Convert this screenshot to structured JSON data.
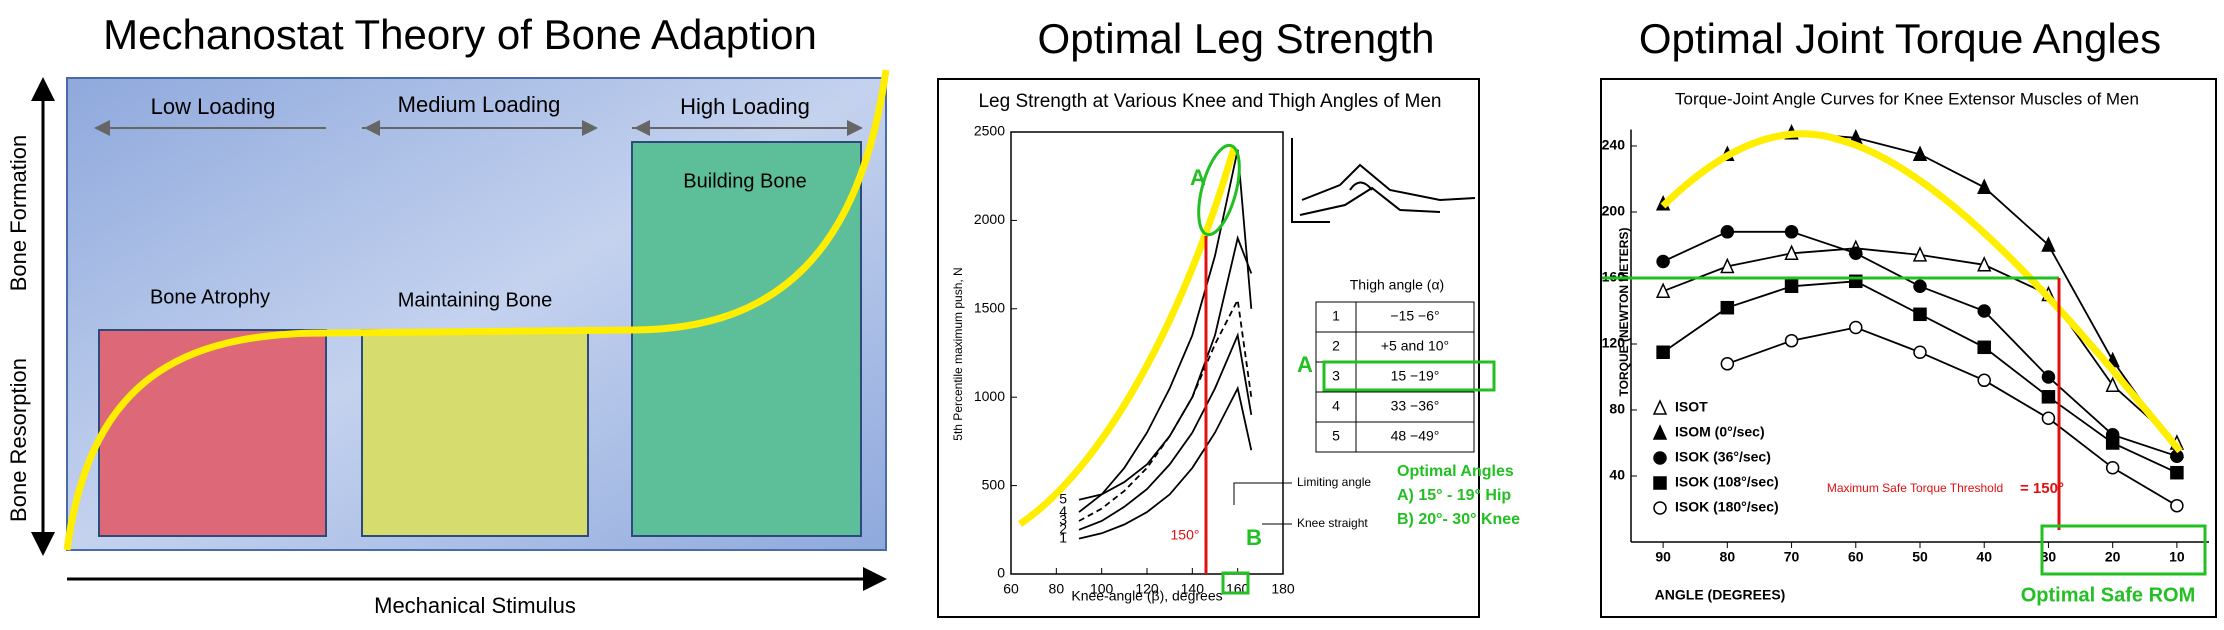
{
  "diagram": {
    "title": "Mechanostat Theory of Bone Adaption",
    "y_labels": [
      "Bone Formation",
      "Bone Resorption"
    ],
    "x_label": "Mechanical Stimulus",
    "zones": [
      {
        "header": "Low Loading",
        "box": "Bone Atrophy"
      },
      {
        "header": "Medium Loading",
        "box": "Maintaining Bone"
      },
      {
        "header": "High Loading",
        "box": "Building Bone"
      }
    ]
  },
  "chart_data": [
    {
      "type": "line",
      "title": "Optimal Leg Strength",
      "subtitle": "Leg Strength at Various Knee and Thigh Angles of Men",
      "x_label": "Knee-angle (β), degrees",
      "y_label": "5th Percentile maximum push, N",
      "x": [
        90,
        100,
        110,
        120,
        130,
        140,
        150,
        160,
        166
      ],
      "xlim": [
        60,
        180
      ],
      "xticks": [
        60,
        80,
        100,
        120,
        140,
        160,
        180
      ],
      "ylim": [
        0,
        2500
      ],
      "yticks": [
        0,
        500,
        1000,
        1500,
        2000,
        2500
      ],
      "series": [
        {
          "name": "1",
          "color": "#000000",
          "values": [
            200,
            230,
            280,
            350,
            450,
            600,
            800,
            1050,
            700
          ]
        },
        {
          "name": "2",
          "color": "#000000",
          "values": [
            250,
            300,
            380,
            480,
            620,
            800,
            1050,
            1350,
            900
          ]
        },
        {
          "name": "3",
          "color": "#000000",
          "dash": true,
          "values": [
            300,
            370,
            470,
            600,
            780,
            1000,
            1300,
            1550,
            1000
          ]
        },
        {
          "name": "4",
          "color": "#000000",
          "values": [
            350,
            450,
            600,
            800,
            1050,
            1350,
            1800,
            2400,
            1500
          ]
        },
        {
          "name": "5",
          "color": "#000000",
          "values": [
            420,
            450,
            520,
            620,
            780,
            1000,
            1350,
            1900,
            1700
          ]
        }
      ],
      "table": {
        "header": "Thigh angle (α)",
        "rows": [
          [
            "1",
            "−15 −6°"
          ],
          [
            "2",
            "+5 and 10°"
          ],
          [
            "3",
            "15 −19°"
          ],
          [
            "4",
            "33 −36°"
          ],
          [
            "5",
            "48 −49°"
          ]
        ]
      },
      "annotations": [
        "A",
        "A",
        "150°",
        "B",
        "Optimal Angles",
        "A) 15° - 19° Hip",
        "B) 20°- 30° Knee",
        "Limiting angle",
        "Knee straight"
      ]
    },
    {
      "type": "line",
      "title": "Optimal Joint Torque Angles",
      "subtitle": "Torque-Joint Angle Curves for Knee Extensor Muscles of Men",
      "x_label": "ANGLE (DEGREES)",
      "y_label": "TORQUE (NEWTON METERS)",
      "x": [
        90,
        80,
        70,
        60,
        50,
        40,
        30,
        20,
        10
      ],
      "xlim": [
        95,
        5
      ],
      "xticks": [
        90,
        80,
        70,
        60,
        50,
        40,
        30,
        20,
        10
      ],
      "ylim": [
        0,
        250
      ],
      "yticks": [
        40,
        80,
        120,
        160,
        200,
        240
      ],
      "series": [
        {
          "name": "ISOT",
          "color": "#000000",
          "marker": "open-triangle",
          "values": [
            152,
            167,
            175,
            178,
            174,
            168,
            150,
            95,
            60
          ]
        },
        {
          "name": "ISOM (0°/sec)",
          "color": "#000000",
          "marker": "triangle",
          "values": [
            205,
            235,
            248,
            245,
            235,
            215,
            180,
            110,
            55
          ]
        },
        {
          "name": "ISOK (36°/sec)",
          "color": "#000000",
          "marker": "circle",
          "values": [
            170,
            188,
            188,
            175,
            155,
            140,
            100,
            65,
            52
          ]
        },
        {
          "name": "ISOK (108°/sec)",
          "color": "#000000",
          "marker": "square",
          "values": [
            115,
            142,
            155,
            158,
            138,
            118,
            88,
            60,
            42
          ]
        },
        {
          "name": "ISOK (180°/sec)",
          "color": "#000000",
          "marker": "open-circle",
          "values": [
            null,
            108,
            122,
            130,
            115,
            98,
            75,
            45,
            22
          ]
        }
      ],
      "annotations": [
        "Maximum Safe Torque Threshold",
        "= 150°",
        "Optimal Safe ROM"
      ]
    }
  ]
}
